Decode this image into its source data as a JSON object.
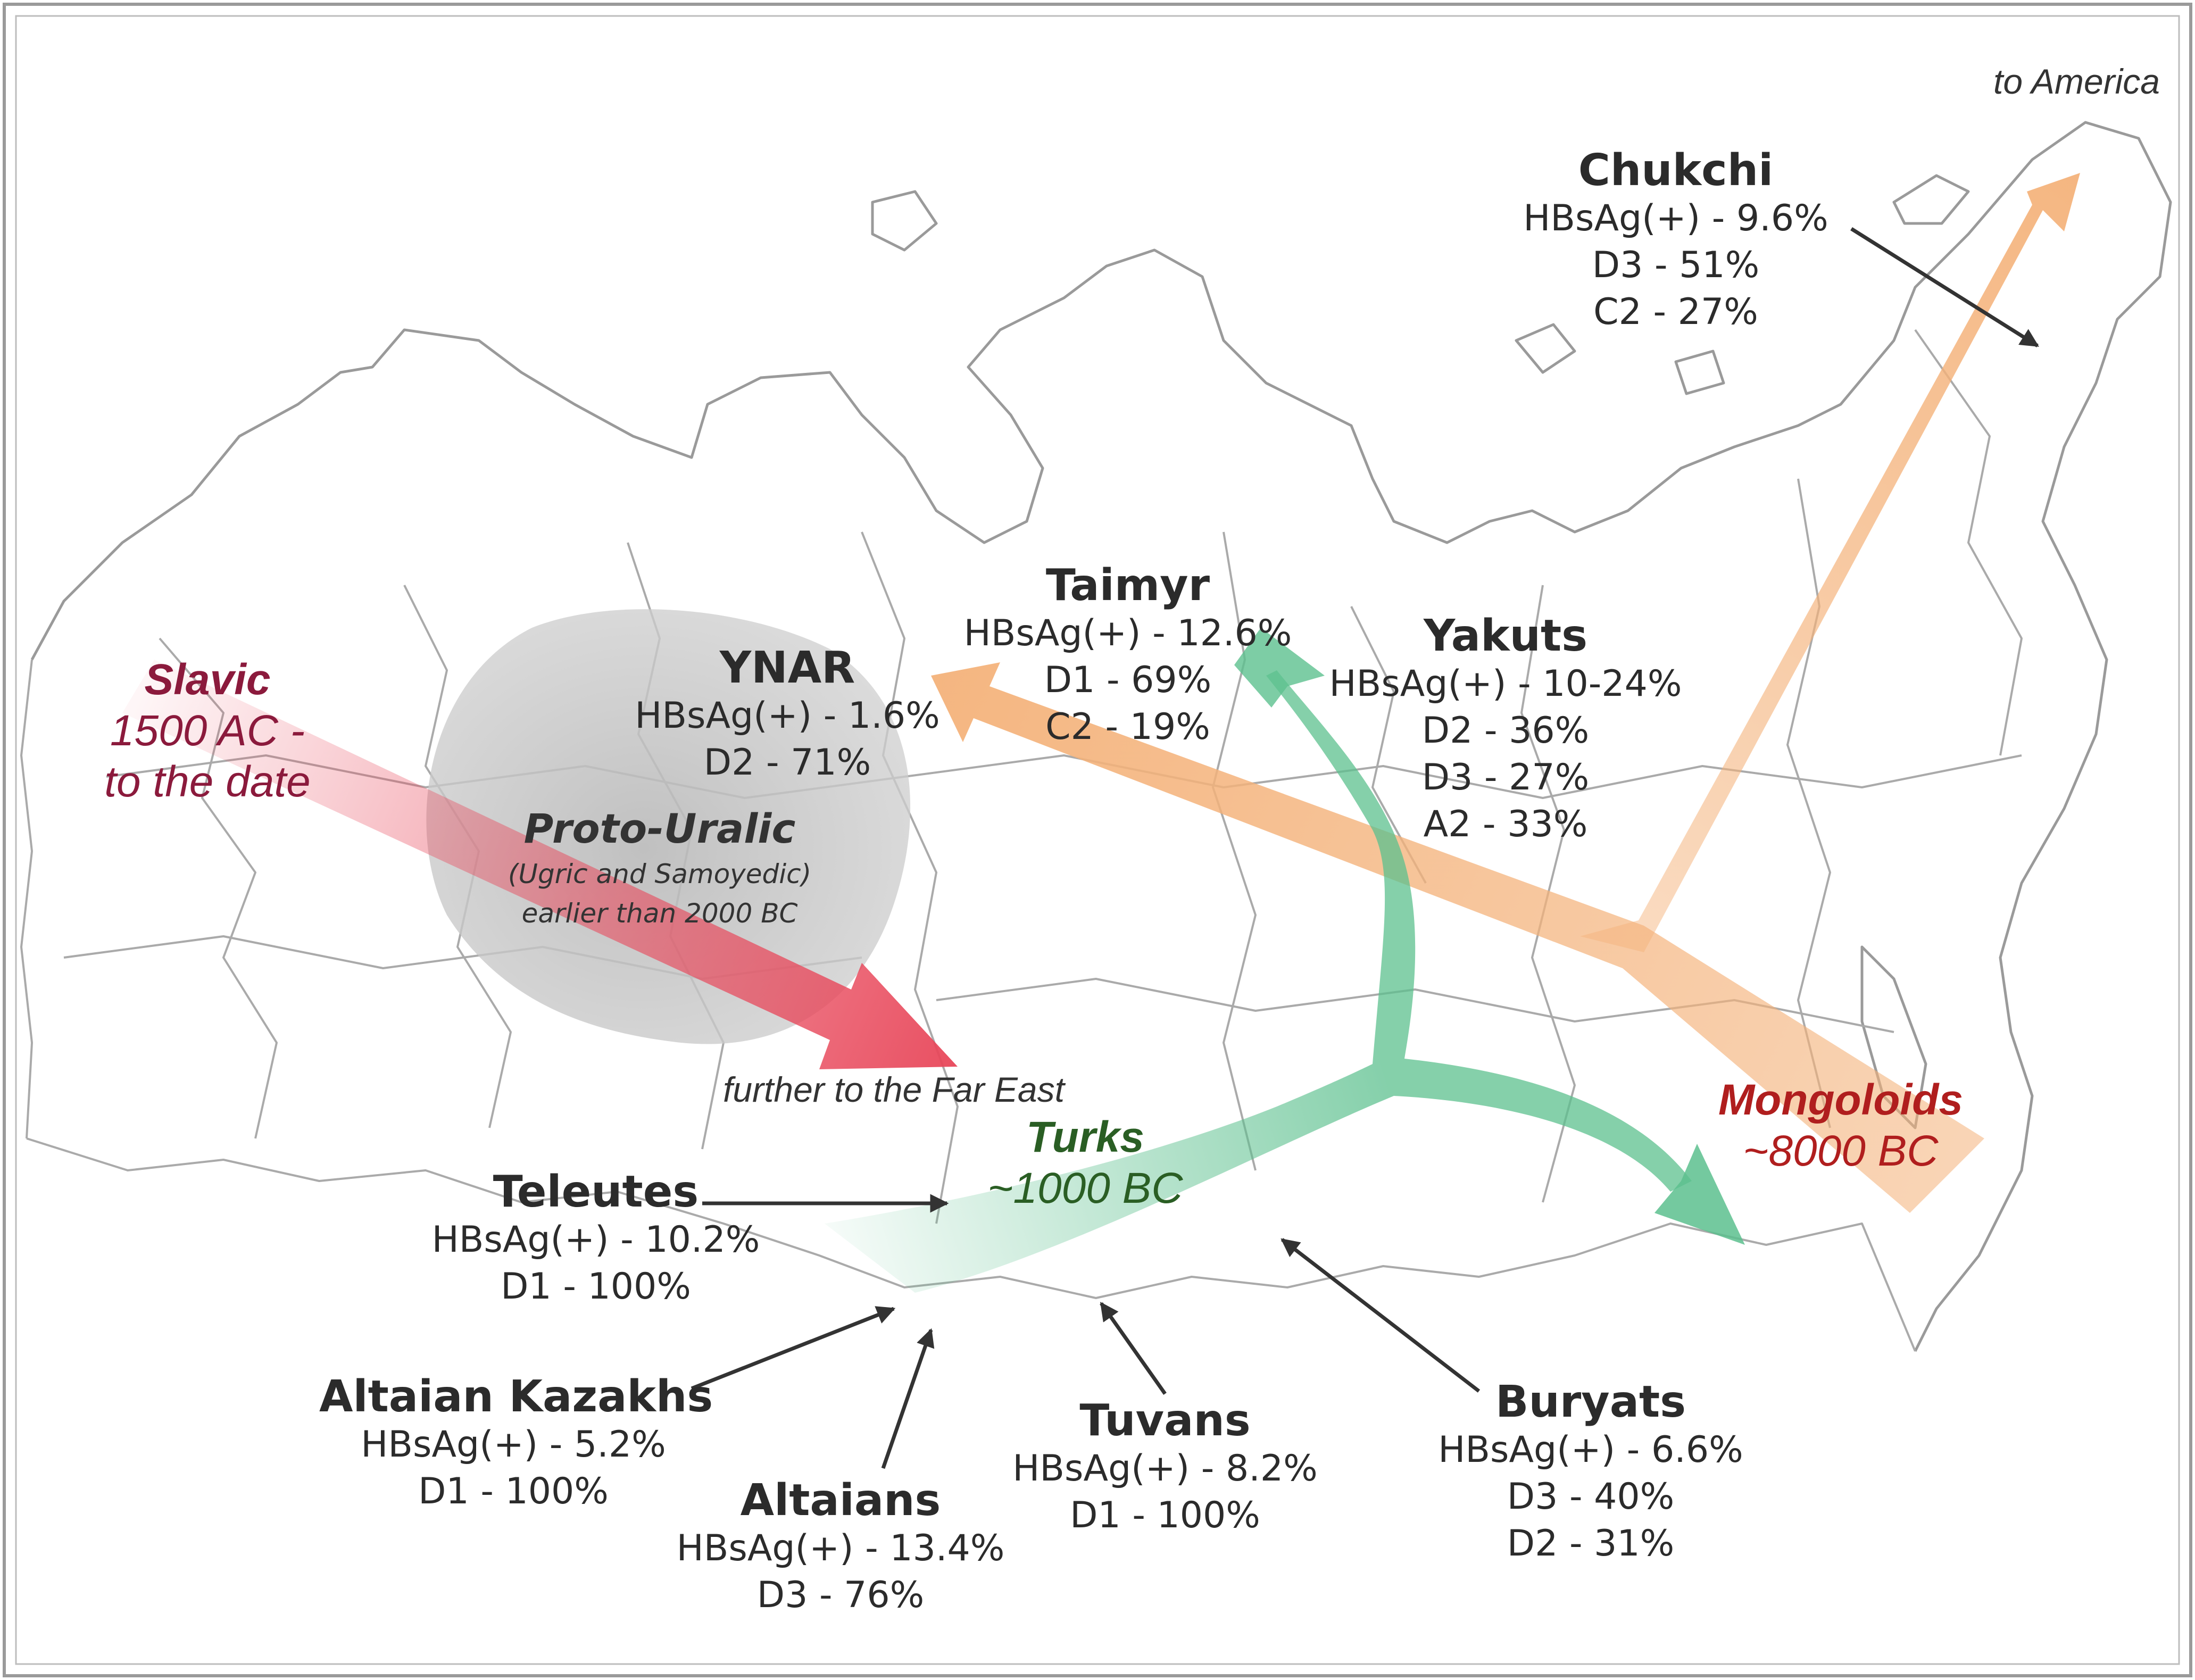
{
  "colors": {
    "slavic": "#8b1a3c",
    "slavic_arrow": "#e8475a",
    "turks": "#2a5e24",
    "turks_arrow": "#5cc08e",
    "mongoloids": "#b01e1e",
    "mongoloids_arrow": "#f4b27a",
    "proto_uralic_area": "#c9c9c9",
    "label_text": "#2b2b2b",
    "pointer_arrow": "#333333",
    "map_lines": "#9a9a9a"
  },
  "migrations": {
    "slavic": {
      "title": "Slavic",
      "line1": "1500 AC -",
      "line2": "to the date"
    },
    "turks": {
      "title": "Turks",
      "line1": "~1000 BC"
    },
    "mongoloids": {
      "title": "Mongoloids",
      "line1": "~8000 BC"
    },
    "proto_uralic": {
      "title": "Proto-Uralic",
      "line1": "(Ugric and Samoyedic)",
      "line2": "earlier than 2000 BC"
    }
  },
  "notes": {
    "to_america": "to America",
    "far_east": "further to the Far East"
  },
  "populations": [
    {
      "id": "chukchi",
      "name": "Chukchi",
      "lines": [
        "HBsAg(+) - 9.6%",
        "D3 - 51%",
        "C2 - 27%"
      ]
    },
    {
      "id": "taimyr",
      "name": "Taimyr",
      "lines": [
        "HBsAg(+) - 12.6%",
        "D1 - 69%",
        "C2 - 19%"
      ]
    },
    {
      "id": "yakuts",
      "name": "Yakuts",
      "lines": [
        "HBsAg(+) - 10-24%",
        "D2 - 36%",
        "D3 - 27%",
        "A2 - 33%"
      ]
    },
    {
      "id": "ynar",
      "name": "YNAR",
      "lines": [
        "HBsAg(+) - 1.6%",
        "D2 - 71%"
      ]
    },
    {
      "id": "teleutes",
      "name": "Teleutes",
      "lines": [
        "HBsAg(+) - 10.2%",
        "D1 - 100%"
      ]
    },
    {
      "id": "altaian_kazakhs",
      "name": "Altaian Kazakhs",
      "lines": [
        "HBsAg(+) - 5.2%",
        "D1 - 100%"
      ]
    },
    {
      "id": "altaians",
      "name": "Altaians",
      "lines": [
        "HBsAg(+) - 13.4%",
        "D3 - 76%"
      ]
    },
    {
      "id": "tuvans",
      "name": "Tuvans",
      "lines": [
        "HBsAg(+) - 8.2%",
        "D1 - 100%"
      ]
    },
    {
      "id": "buryats",
      "name": "Buryats",
      "lines": [
        "HBsAg(+) - 6.6%",
        "D3 - 40%",
        "D2 - 31%"
      ]
    }
  ]
}
